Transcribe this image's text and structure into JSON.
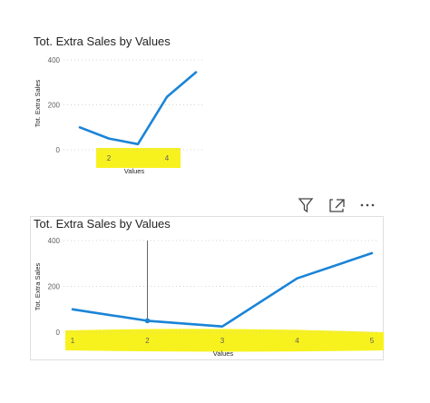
{
  "chart_data": [
    {
      "type": "line",
      "title": "Tot. Extra Sales by Values",
      "xlabel": "Values",
      "ylabel": "Tot. Extra Sales",
      "x": [
        1,
        2,
        3,
        4,
        5
      ],
      "x_tick_labels": [
        "2",
        "4"
      ],
      "y_ticks": [
        "0",
        "200",
        "400"
      ],
      "ylim": [
        0,
        400
      ],
      "series": [
        {
          "values": [
            100,
            50,
            25,
            235,
            345
          ]
        }
      ],
      "grid": true,
      "highlight_color": "#f7f21e",
      "line_color": "#1b84d7"
    },
    {
      "type": "line",
      "title": "Tot. Extra Sales by Values",
      "xlabel": "Values",
      "ylabel": "Tot. Extra Sales",
      "x": [
        1,
        2,
        3,
        4,
        5
      ],
      "x_tick_labels": [
        "1",
        "2",
        "3",
        "4",
        "5"
      ],
      "y_ticks": [
        "0",
        "200",
        "400"
      ],
      "ylim": [
        0,
        400
      ],
      "series": [
        {
          "values": [
            100,
            50,
            25,
            235,
            345
          ]
        }
      ],
      "grid": true,
      "hover_x": 2,
      "highlight_color": "#f7f21e",
      "line_color": "#1b84d7"
    }
  ],
  "toolbar": {
    "icons": [
      "filter-icon",
      "focus-mode-icon",
      "more-options-icon"
    ]
  }
}
